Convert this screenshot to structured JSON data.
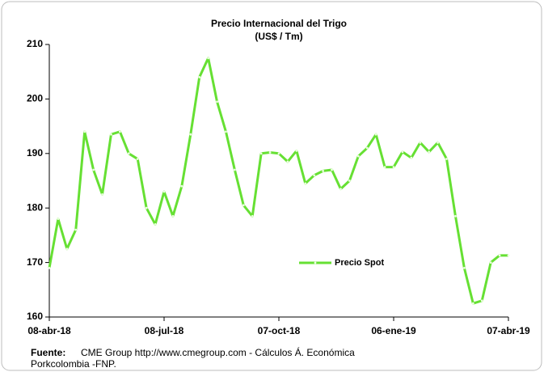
{
  "chart_data": {
    "type": "line",
    "title": "Precio Internacional del Trigo",
    "subtitle": "(US$ / Tm)",
    "categories": [
      "08-abr-18",
      null,
      null,
      null,
      null,
      null,
      null,
      null,
      null,
      null,
      null,
      null,
      null,
      "08-jul-18",
      null,
      null,
      null,
      null,
      null,
      null,
      null,
      null,
      null,
      null,
      null,
      null,
      "07-oct-18",
      null,
      null,
      null,
      null,
      null,
      null,
      null,
      null,
      null,
      null,
      null,
      null,
      "06-ene-19",
      null,
      null,
      null,
      null,
      null,
      null,
      null,
      null,
      null,
      null,
      null,
      null,
      "07-abr-19"
    ],
    "series": [
      {
        "name": "Precio Spot",
        "color": "#66e033",
        "values": [
          169,
          178,
          172.5,
          176,
          194,
          187,
          182.5,
          193.5,
          194,
          190,
          189,
          180,
          177,
          183,
          178.5,
          184,
          193.5,
          204,
          207.5,
          199.5,
          194,
          187,
          180.5,
          178.5,
          190,
          190.2,
          190,
          188.5,
          190.5,
          184.5,
          186,
          186.8,
          187,
          183.5,
          185,
          189.5,
          191,
          193.5,
          187.5,
          187.5,
          190.3,
          189.2,
          192,
          190.3,
          192,
          189,
          178.5,
          169,
          162.5,
          163,
          170,
          171.3,
          171.3
        ]
      }
    ],
    "ylim": [
      160,
      210
    ],
    "yticks": [
      160,
      170,
      180,
      190,
      200,
      210
    ],
    "grid": false,
    "legend": "center",
    "source_label": "Fuente:",
    "source_lines": [
      "CME Group http://www.cmegroup.com - Cálculos Á. Económica",
      "Porkcolombia -FNP."
    ]
  }
}
